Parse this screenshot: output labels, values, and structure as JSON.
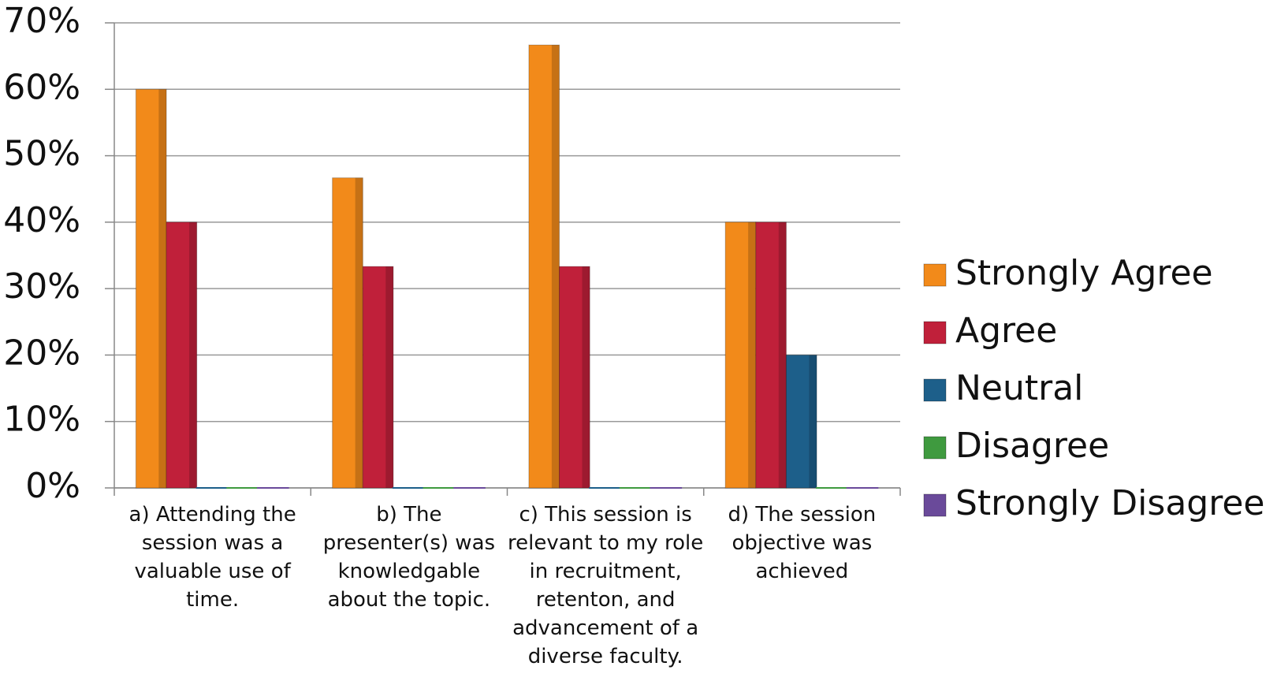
{
  "chart_data": {
    "type": "bar",
    "categories": [
      "a) Attending the session was a valuable use of time.",
      "b) The presenter(s) was knowledgable about the topic.",
      "c) This session is relevant to my role in recruitment, retenton, and advancement of a diverse faculty.",
      "d) The session objective was achieved"
    ],
    "series": [
      {
        "name": "Strongly Agree",
        "color": "#f28a1a",
        "values": [
          60,
          46.67,
          66.67,
          40
        ]
      },
      {
        "name": "Agree",
        "color": "#c0203a",
        "values": [
          40,
          33.33,
          33.33,
          40
        ]
      },
      {
        "name": "Neutral",
        "color": "#1d5f8a",
        "values": [
          0,
          0,
          0,
          20
        ]
      },
      {
        "name": "Disagree",
        "color": "#3f9a3f",
        "values": [
          0,
          0,
          0,
          0
        ]
      },
      {
        "name": "Strongly Disagree",
        "color": "#6a4a9a",
        "values": [
          0,
          0,
          0,
          0
        ]
      }
    ],
    "ylim": [
      0,
      70
    ],
    "yticks": [
      {
        "value": 0,
        "label": "0%"
      },
      {
        "value": 10,
        "label": "10%"
      },
      {
        "value": 20,
        "label": "20%"
      },
      {
        "value": 30,
        "label": "30%"
      },
      {
        "value": 40,
        "label": "40%"
      },
      {
        "value": 50,
        "label": "50%"
      },
      {
        "value": 60,
        "label": "60%"
      },
      {
        "value": 70,
        "label": "70%"
      }
    ],
    "grid": true,
    "legend": "right"
  }
}
